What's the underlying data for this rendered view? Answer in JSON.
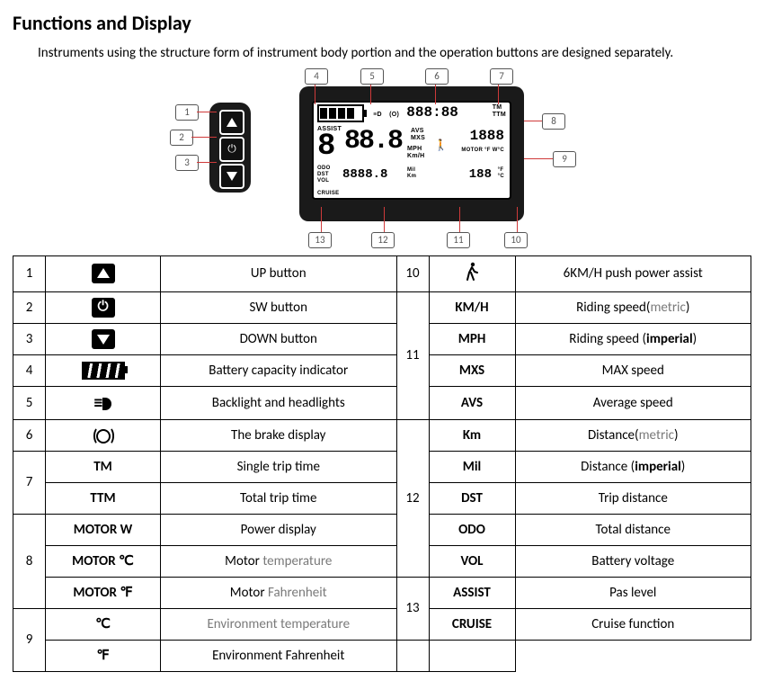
{
  "title": "Functions and Display",
  "intro": "Instruments using the structure form of instrument body portion and the operation buttons are designed separately.",
  "diagram": {
    "callouts": [
      "1",
      "2",
      "3",
      "4",
      "5",
      "6",
      "7",
      "8",
      "9",
      "10",
      "11",
      "12",
      "13"
    ],
    "display": {
      "time": "888:88",
      "time_labels": "TM\nTTM",
      "assist": "ASSIST",
      "assist_digit": "8",
      "speed": "88.8",
      "speed_labels": "AVS\nMXS",
      "power": "1888",
      "motor_label": "MOTOR °F W°C",
      "units": "MPH\nKm/H",
      "bottom_labels": "ODO\nDST\nVOL",
      "bottom_val": "8888.8",
      "bottom_unit": "Mil\nKm",
      "temp": "188",
      "temp_unit": "°F\n°C",
      "cruise": "CRUISE"
    }
  },
  "table": {
    "rows": [
      {
        "n1": "1",
        "sym1_type": "icon-up",
        "sym1": "",
        "d1": "UP button",
        "n2": "10",
        "sym2_type": "icon-walk",
        "sym2": "",
        "d2": "6KM/H push power assist"
      },
      {
        "n1": "2",
        "sym1_type": "icon-sw",
        "sym1": "",
        "d1": "SW button",
        "n2": "11",
        "n2_rows": 4,
        "sym2": "KM/H",
        "d2": "Riding speed(",
        "d2_gray": "metric",
        "d2_suffix": ")"
      },
      {
        "n1": "3",
        "sym1_type": "icon-down",
        "sym1": "",
        "d1": "DOWN button",
        "sym2": "MPH",
        "d2": "Riding speed (",
        "d2_bold": "imperial",
        "d2_suffix": ")"
      },
      {
        "n1": "4",
        "sym1_type": "icon-batt",
        "sym1": "",
        "d1": "Battery capacity indicator",
        "sym2": "MXS",
        "d2": "MAX speed"
      },
      {
        "n1": "5",
        "sym1_type": "icon-light",
        "sym1": "",
        "d1": "Backlight and headlights",
        "sym2": "AVS",
        "d2": "Average speed"
      },
      {
        "n1": "6",
        "sym1_type": "icon-brake",
        "sym1": "",
        "d1": "The brake display",
        "n2": "12",
        "n2_rows": 5,
        "sym2": "Km",
        "d2": "Distance(",
        "d2_gray": "metric",
        "d2_suffix": ")"
      },
      {
        "n1": "7",
        "n1_rows": 2,
        "sym1": "TM",
        "d1": "Single trip time",
        "sym2": "Mil",
        "d2": "Distance (",
        "d2_bold": "imperial",
        "d2_suffix": ")"
      },
      {
        "sym1": "TTM",
        "d1": "Total trip time",
        "sym2": "DST",
        "d2": "Trip distance"
      },
      {
        "n1": "8",
        "n1_rows": 3,
        "sym1": "MOTOR W",
        "d1": "Power display",
        "sym2": "ODO",
        "d2": "Total distance"
      },
      {
        "sym1": "MOTOR  ℃",
        "d1": "Motor ",
        "d1_gray": "temperature",
        "sym2": "VOL",
        "d2": "Battery voltage"
      },
      {
        "sym1": "MOTOR  ℉",
        "d1": "Motor ",
        "d1_gray": "Fahrenheit",
        "n2": "13",
        "n2_rows": 2,
        "sym2": "ASSIST",
        "d2": "Pas level"
      },
      {
        "n1": "9",
        "n1_rows": 2,
        "sym1": "℃",
        "d1_gray_full": "Environment temperature",
        "sym2": "CRUISE",
        "d2": "Cruise function"
      },
      {
        "sym1": "℉",
        "d1": "Environment Fahrenheit",
        "sym2": "",
        "d2": ""
      }
    ]
  }
}
